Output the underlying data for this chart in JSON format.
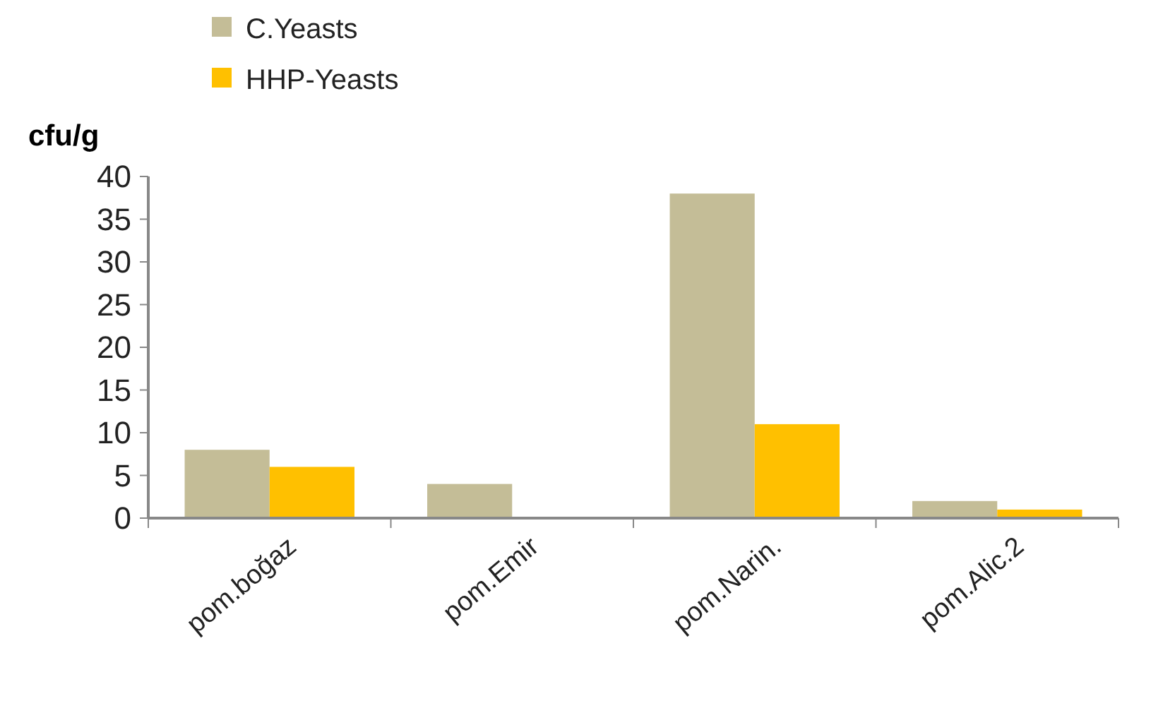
{
  "chart_data": {
    "type": "bar",
    "ylabel": "cfu/g",
    "categories": [
      "pom.boğaz",
      "pom.Emir",
      "pom.Narin.",
      "pom.Alic.2"
    ],
    "series": [
      {
        "name": "C.Yeasts",
        "color": "#c4bd97",
        "values": [
          8,
          4,
          38,
          2
        ]
      },
      {
        "name": "HHP-Yeasts",
        "color": "#ffc000",
        "values": [
          6,
          0,
          11,
          1
        ]
      }
    ],
    "ylim": [
      0,
      40
    ],
    "yticks": [
      0,
      5,
      10,
      15,
      20,
      25,
      30,
      35,
      40
    ],
    "grid": false,
    "legend": "top left"
  }
}
